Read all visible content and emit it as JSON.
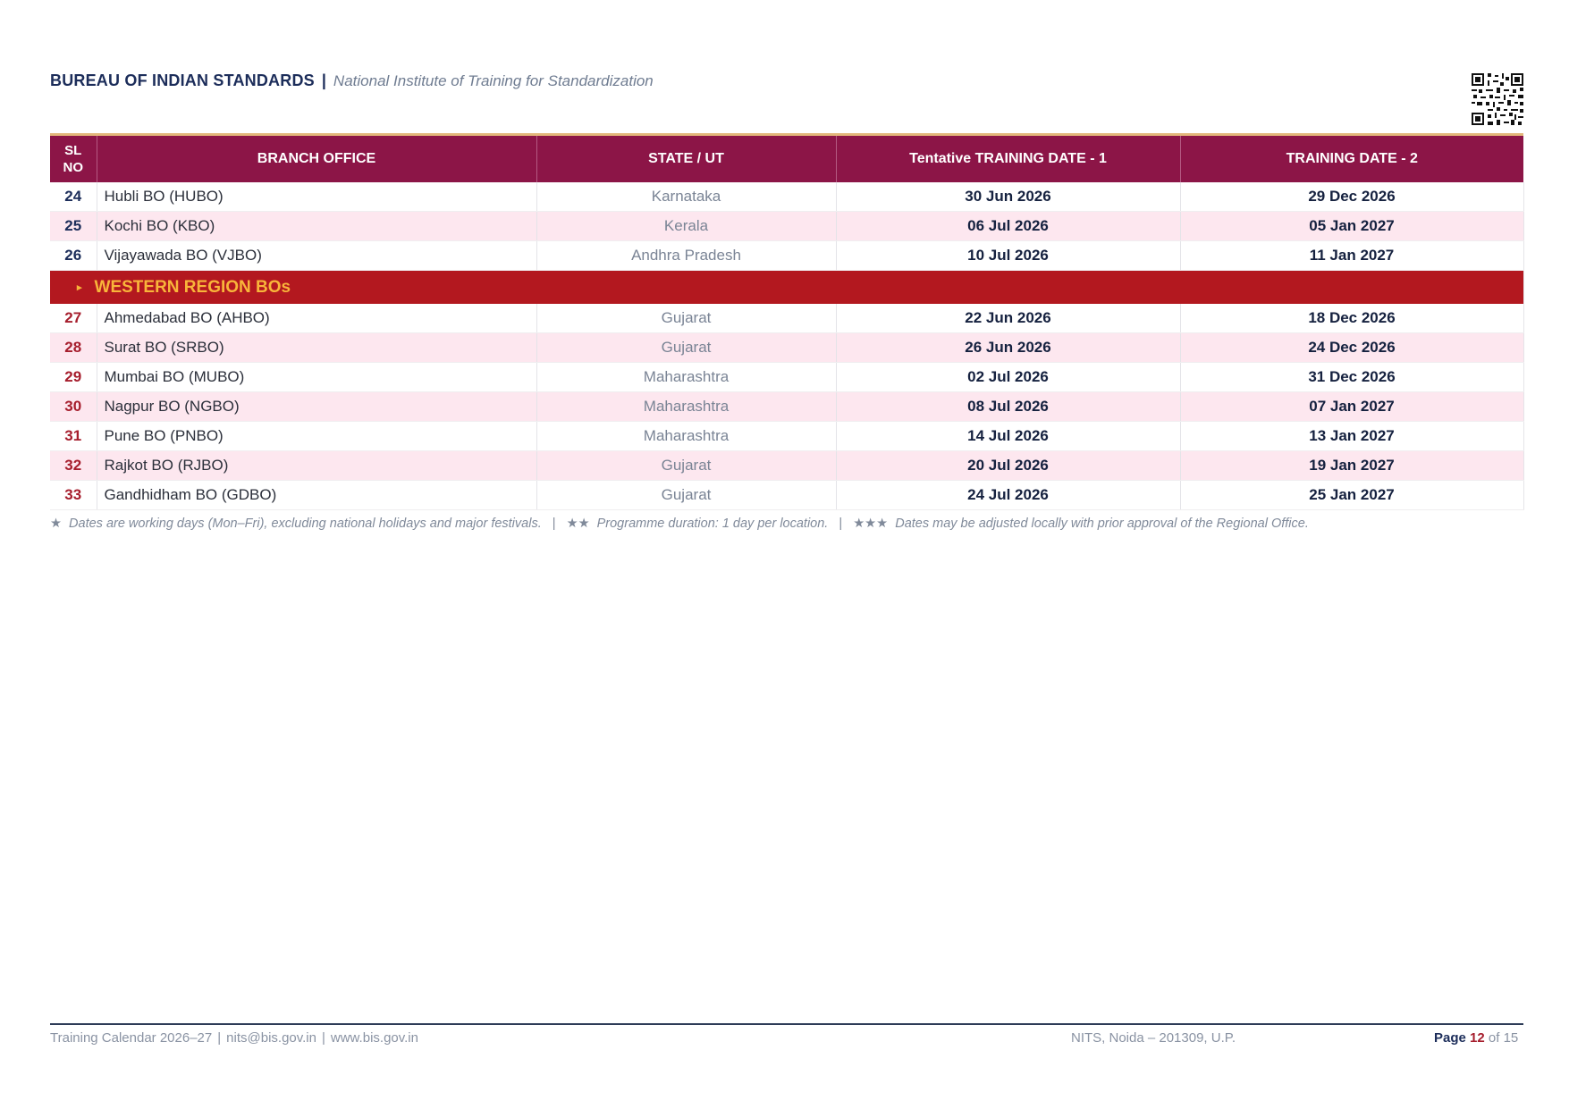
{
  "header": {
    "org": "BUREAU OF INDIAN STANDARDS",
    "separator": "|",
    "institute": "National Institute of Training for Standardization"
  },
  "table": {
    "columns": {
      "sl_line1": "SL",
      "sl_line2": "NO",
      "office": "BRANCH OFFICE",
      "state": "STATE / UT",
      "date1": "Tentative TRAINING DATE - 1",
      "date2": "TRAINING DATE - 2"
    },
    "rows_top": [
      {
        "sl": "24",
        "office": "Hubli BO (HUBO)",
        "state": "Karnataka",
        "date1": "30 Jun 2026",
        "date2": "29 Dec 2026"
      },
      {
        "sl": "25",
        "office": "Kochi BO (KBO)",
        "state": "Kerala",
        "date1": "06 Jul 2026",
        "date2": "05 Jan 2027"
      },
      {
        "sl": "26",
        "office": "Vijayawada BO (VJBO)",
        "state": "Andhra Pradesh",
        "date1": "10 Jul 2026",
        "date2": "11 Jan 2027"
      }
    ],
    "region": {
      "marker": "▸",
      "title": "WESTERN REGION BOs"
    },
    "rows_western": [
      {
        "sl": "27",
        "office": "Ahmedabad BO (AHBO)",
        "state": "Gujarat",
        "date1": "22 Jun 2026",
        "date2": "18 Dec 2026"
      },
      {
        "sl": "28",
        "office": "Surat BO (SRBO)",
        "state": "Gujarat",
        "date1": "26 Jun 2026",
        "date2": "24 Dec 2026"
      },
      {
        "sl": "29",
        "office": "Mumbai BO (MUBO)",
        "state": "Maharashtra",
        "date1": "02 Jul 2026",
        "date2": "31 Dec 2026"
      },
      {
        "sl": "30",
        "office": "Nagpur BO (NGBO)",
        "state": "Maharashtra",
        "date1": "08 Jul 2026",
        "date2": "07 Jan 2027"
      },
      {
        "sl": "31",
        "office": "Pune BO (PNBO)",
        "state": "Maharashtra",
        "date1": "14 Jul 2026",
        "date2": "13 Jan 2027"
      },
      {
        "sl": "32",
        "office": "Rajkot BO (RJBO)",
        "state": "Gujarat",
        "date1": "20 Jul 2026",
        "date2": "19 Jan 2027"
      },
      {
        "sl": "33",
        "office": "Gandhidham BO (GDBO)",
        "state": "Gujarat",
        "date1": "24 Jul 2026",
        "date2": "25 Jan 2027"
      }
    ]
  },
  "notes": [
    {
      "stars": "★",
      "text": "Dates are working days (Mon–Fri), excluding national holidays and major festivals."
    },
    {
      "stars": "★★",
      "text": "Programme duration: 1 day per location."
    },
    {
      "stars": "★★★",
      "text": "Dates may be adjusted locally with prior approval of the Regional Office."
    }
  ],
  "notes_separator": "|",
  "footer": {
    "calendar": "Training Calendar 2026–27",
    "email": "nits@bis.gov.in",
    "website": "www.bis.gov.in",
    "separator": "|",
    "address": "NITS, Noida – 201309, U.P.",
    "page_label": "Page",
    "page_number": "12",
    "page_of": "of 15"
  },
  "colors": {
    "header_bg": "#8c1547",
    "region_bg": "#b3181f",
    "region_text": "#f8b53a",
    "row_alt": "#fde7ef",
    "navy": "#1c2d5a"
  },
  "icons": {
    "qr": "qr-code-icon"
  }
}
